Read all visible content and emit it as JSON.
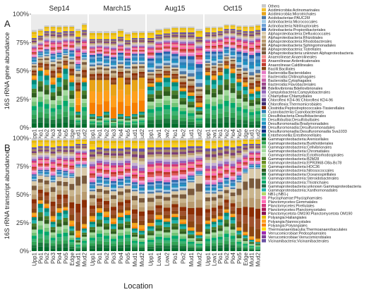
{
  "chart_data": {
    "type": "bar",
    "stacked": true,
    "grid": true,
    "legend_placement": "right",
    "xlabel": "Location",
    "ylim": [
      0,
      100
    ],
    "yticks": [
      "0%",
      "25%",
      "50%",
      "75%",
      "100%"
    ],
    "facets": [
      "Sep14",
      "March15",
      "Aug15",
      "Oct15"
    ],
    "facet_categories": [
      [
        "Upp1",
        "Pio1",
        "Pio2",
        "Pio3",
        "Pio4",
        "Pio5",
        "Edge",
        "Mud1",
        "Mud2"
      ],
      [
        "Upp1",
        "Pio1",
        "Pio2",
        "Pio3",
        "Pio4",
        "Pio5",
        "Mud1",
        "Mud2"
      ],
      [
        "Upp1",
        "Low1",
        "Low2",
        "Pio1",
        "Pio2",
        "Mud1",
        "Mud2"
      ],
      [
        "Upp1",
        "Low1",
        "Pio1",
        "Pio2",
        "Pio4",
        "Pio5",
        "Edge",
        "Mud1",
        "Mud2"
      ]
    ],
    "panels": [
      {
        "tag": "A",
        "ylabel": "16S rRNA gene abundance",
        "groups": {
          "green": [
            [
              42,
              50,
              46,
              38,
              44,
              52,
              40,
              14,
              40
            ],
            [
              12,
              10,
              14,
              8,
              12,
              10,
              12,
              14
            ],
            [
              36,
              40,
              44,
              40,
              32,
              28,
              18
            ],
            [
              46,
              42,
              46,
              52,
              48,
              40,
              36,
              30,
              32
            ]
          ],
          "orange": [
            [
              4,
              3,
              5,
              6,
              4,
              3,
              6,
              18,
              4
            ],
            [
              30,
              32,
              28,
              30,
              32,
              28,
              30,
              30
            ],
            [
              3,
              4,
              2,
              3,
              3,
              3,
              4
            ],
            [
              3,
              4,
              3,
              3,
              4,
              3,
              4,
              4,
              4
            ]
          ],
          "brown": [
            [
              10,
              9,
              12,
              14,
              12,
              9,
              14,
              18,
              16
            ],
            [
              12,
              13,
              12,
              14,
              12,
              14,
              14,
              12
            ],
            [
              10,
              8,
              9,
              10,
              12,
              14,
              14
            ],
            [
              8,
              9,
              8,
              8,
              9,
              10,
              10,
              12,
              12
            ]
          ],
          "blue": [
            [
              6,
              5,
              6,
              7,
              6,
              5,
              8,
              6,
              6
            ],
            [
              10,
              10,
              9,
              10,
              10,
              9,
              9,
              9
            ],
            [
              12,
              14,
              12,
              12,
              16,
              18,
              20
            ],
            [
              10,
              12,
              10,
              8,
              9,
              14,
              16,
              18,
              18
            ]
          ],
          "pinkred": [
            [
              8,
              6,
              7,
              10,
              9,
              7,
              8,
              12,
              10
            ],
            [
              6,
              6,
              7,
              7,
              6,
              8,
              6,
              6
            ],
            [
              9,
              8,
              8,
              10,
              11,
              11,
              14
            ],
            [
              9,
              9,
              10,
              8,
              9,
              10,
              10,
              11,
              11
            ]
          ],
          "purpletan": [
            [
              9,
              8,
              9,
              10,
              9,
              9,
              9,
              12,
              10
            ],
            [
              8,
              7,
              8,
              9,
              8,
              8,
              8,
              8
            ],
            [
              9,
              8,
              8,
              9,
              10,
              10,
              10
            ],
            [
              8,
              8,
              8,
              8,
              8,
              9,
              9,
              10,
              9
            ]
          ],
          "yellow": [
            [
              7,
              6,
              5,
              5,
              6,
              5,
              5,
              7,
              6
            ],
            [
              7,
              7,
              7,
              7,
              7,
              7,
              6,
              6
            ],
            [
              6,
              5,
              5,
              5,
              5,
              5,
              7
            ],
            [
              5,
              5,
              4,
              4,
              4,
              4,
              5,
              5,
              5
            ]
          ]
        }
      },
      {
        "tag": "B",
        "ylabel": "16S rRNA transcript abundance",
        "groups": {
          "green": [
            [
              30,
              42,
              38,
              26,
              34,
              36,
              22,
              12,
              20
            ],
            [
              26,
              34,
              30,
              24,
              30,
              32,
              20,
              18
            ],
            [
              22,
              28,
              26,
              30,
              24,
              18,
              14
            ],
            [
              24,
              26,
              28,
              34,
              30,
              18,
              14,
              10,
              8
            ]
          ],
          "orange": [
            [
              4,
              3,
              4,
              5,
              4,
              3,
              5,
              6,
              4
            ],
            [
              5,
              4,
              5,
              5,
              4,
              4,
              5,
              5
            ],
            [
              3,
              4,
              3,
              3,
              4,
              3,
              3
            ],
            [
              3,
              3,
              3,
              3,
              3,
              3,
              3,
              3,
              3
            ]
          ],
          "brown": [
            [
              28,
              22,
              24,
              30,
              28,
              26,
              38,
              56,
              50
            ],
            [
              22,
              20,
              22,
              24,
              22,
              22,
              28,
              28
            ],
            [
              26,
              20,
              22,
              20,
              26,
              40,
              50
            ],
            [
              24,
              22,
              22,
              20,
              22,
              40,
              52,
              60,
              62
            ]
          ],
          "blue": [
            [
              6,
              5,
              6,
              6,
              6,
              6,
              4,
              3,
              3
            ],
            [
              8,
              8,
              8,
              9,
              8,
              8,
              8,
              8
            ],
            [
              10,
              10,
              10,
              10,
              10,
              6,
              4
            ],
            [
              8,
              8,
              8,
              8,
              8,
              6,
              4,
              4,
              4
            ]
          ],
          "pinkred": [
            [
              12,
              10,
              10,
              12,
              10,
              10,
              12,
              10,
              10
            ],
            [
              14,
              12,
              12,
              14,
              12,
              12,
              12,
              12
            ],
            [
              16,
              16,
              16,
              14,
              14,
              12,
              10
            ],
            [
              14,
              14,
              14,
              12,
              12,
              12,
              10,
              10,
              10
            ]
          ],
          "purpletan": [
            [
              12,
              11,
              11,
              13,
              11,
              12,
              12,
              8,
              8
            ],
            [
              15,
              14,
              14,
              15,
              15,
              14,
              18,
              20
            ],
            [
              15,
              14,
              15,
              15,
              14,
              14,
              12
            ],
            [
              18,
              18,
              17,
              16,
              17,
              14,
              12,
              8,
              8
            ]
          ],
          "yellow": [
            [
              8,
              7,
              7,
              8,
              7,
              7,
              7,
              5,
              5
            ],
            [
              10,
              8,
              9,
              9,
              9,
              8,
              9,
              9
            ],
            [
              8,
              8,
              8,
              8,
              8,
              7,
              7
            ],
            [
              9,
              9,
              8,
              7,
              8,
              7,
              5,
              5,
              5
            ]
          ]
        }
      }
    ],
    "legend": [
      "Others",
      "Acidimicrobiia:Actinomarinales",
      "Acidimicrobiia:Microtrichales",
      "Acidobacteriae:PAUC26f",
      "Actinobacteria:Micrococcales",
      "Actinobacteria:Nitriliruptorales",
      "Actinobacteria:Propionibacteriales",
      "Alphaproteobacteria:Defluviicoccales",
      "Alphaproteobacteria:Rhizobiales",
      "Alphaproteobacteria:Rhodobacterales",
      "Alphaproteobacteria:Sphingomonadales",
      "Alphaproteobacteria:Tistrellales",
      "Alphaproteobacteria:unknown Alphaproteobacteria",
      "Anaerolineae:Anaerolineales",
      "Anaerolineae:Ardenticatenales",
      "Anaerolineae:Caldilineales",
      "Bacilli:Bacillales",
      "Bacteroidia:Bacteroidales",
      "Bacteroidia:Chitinophagales",
      "Bacteroidia:Cytophagales",
      "Bacteroidia:Flavobacteriales",
      "Bdellovibrionia:Bdellovibrionales",
      "Campylobacteria:Campylobacterales",
      "Chlamydiae:Chlamydiales",
      "Chloroflexi KD4-96:Chloroflexi KD4-96",
      "Chloroflexia:Thermomicrobiales",
      "Clostridia:Peptostreptococcales-Tissierellales",
      "Cyanobacteriia:Cyanobacteriales",
      "Desulfobacteria:Desulfobacterales",
      "Desulfobulbia:Desulfobulbales",
      "Desulfuromonadia:Bradymonadales",
      "Desulfuromonadia:Desulfuromonadales",
      "Desulfuromonadia:Desulfuromonadia Sva1033",
      "Entotheonellia:Entotheonellales",
      "Gammaproteobacteria:Arenicellales",
      "Gammaproteobacteria:Burkholderiales",
      "Gammaproteobacteria:Cellvibrionales",
      "Gammaproteobacteria:Chromatiales",
      "Gammaproteobacteria:Ectothiorhodospirales",
      "Gammaproteobacteria:B2M28",
      "Gammaproteobacteria:EPR3968-O8a-Bc78",
      "Gammaproteobacteria:HOC36",
      "Gammaproteobacteria:Nitrosococcales",
      "Gammaproteobacteria:Oceanospirillales",
      "Gammaproteobacteria:Steroidobacterales",
      "Gammaproteobacteria:Thiotrichales",
      "Gammaproteobacteria:unknown Gammaproteobacteria",
      "Gammaproteobacteria:Xanthomonadales",
      "NB1-j:NB1-j",
      "Phycisphaerae:Phycisphaerales",
      "Planctomycetes:Gemmatales",
      "Planctomycetes:Pirellulales",
      "Planctomycetes:Planctomycetales",
      "Planctomycetota OM190:Planctomycetota OM190",
      "Polyangia:Haliangiales",
      "Polyangia:Nannocystales",
      "Polyangia:Polyangiales",
      "Thermoanaerobaculia:Thermoanaerobaculales",
      "Verrucomicrobiae:Pedosphaerales",
      "Verrucomicrobiae:Verrucomicrobiales",
      "Vicinamibacteria:Vicinamibacterales"
    ],
    "legend_colors": [
      "#c8c8c8",
      "#f2c230",
      "#e8a317",
      "#4e79a7",
      "#a0cbe8",
      "#6a9fd4",
      "#3d6fb6",
      "#d9c9a8",
      "#c9b48c",
      "#b89a6e",
      "#a48560",
      "#8e6e4c",
      "#7a5a3c",
      "#f28e8e",
      "#e05a5a",
      "#c0392b",
      "#8b4513",
      "#e377c2",
      "#f4a6d7",
      "#c85fa8",
      "#9e4a8c",
      "#7b3f7a",
      "#9467bd",
      "#c5b0d5",
      "#5b3f8c",
      "#3e2a6e",
      "#8c2d04",
      "#2c7fb8",
      "#7fcdbb",
      "#41b6c4",
      "#1d91c0",
      "#225ea8",
      "#0c2c84",
      "#00897b",
      "#006d2c",
      "#31a354",
      "#74c476",
      "#a1d99b",
      "#c7e9c0",
      "#4a7c29",
      "#6b8e23",
      "#8fbc3f",
      "#2e5d1e",
      "#1b7a3e",
      "#3cb371",
      "#00a86b",
      "#1f6f4a",
      "#20b2aa",
      "#b5d96b",
      "#f781bf",
      "#ff69b4",
      "#d4357a",
      "#ad1457",
      "#880e4f",
      "#e6b800",
      "#ff9f1c",
      "#f77f00",
      "#ffd700",
      "#9c27b0",
      "#7e3f98",
      "#6a51a3"
    ],
    "group_colors": {
      "green": [
        "#006d2c",
        "#1b7a3e",
        "#31a354",
        "#3cb371",
        "#00a86b",
        "#74c476",
        "#a1d99b",
        "#2e5d1e",
        "#4a7c29",
        "#20b2aa",
        "#00897b"
      ],
      "orange": [
        "#f77f00",
        "#ff9f1c",
        "#e8a317"
      ],
      "brown": [
        "#8b4513",
        "#a0522d",
        "#8c2d04",
        "#b89a6e",
        "#c9b48c",
        "#7a5a3c",
        "#d9c9a8"
      ],
      "blue": [
        "#4e79a7",
        "#a0cbe8",
        "#1d91c0",
        "#2c7fb8",
        "#6a9fd4",
        "#225ea8"
      ],
      "pinkred": [
        "#e377c2",
        "#f4a6d7",
        "#e05a5a",
        "#c0392b",
        "#ff69b4",
        "#f28e8e",
        "#d4357a"
      ],
      "purpletan": [
        "#9467bd",
        "#c5b0d5",
        "#d9c9a8",
        "#b89a6e",
        "#7b3f7a",
        "#a48560",
        "#6a51a3"
      ],
      "yellow": [
        "#ffd700",
        "#f2c230",
        "#e6b800",
        "#c8c8c8"
      ]
    },
    "group_order": [
      "green",
      "orange",
      "brown",
      "blue",
      "pinkred",
      "purpletan",
      "yellow"
    ]
  }
}
